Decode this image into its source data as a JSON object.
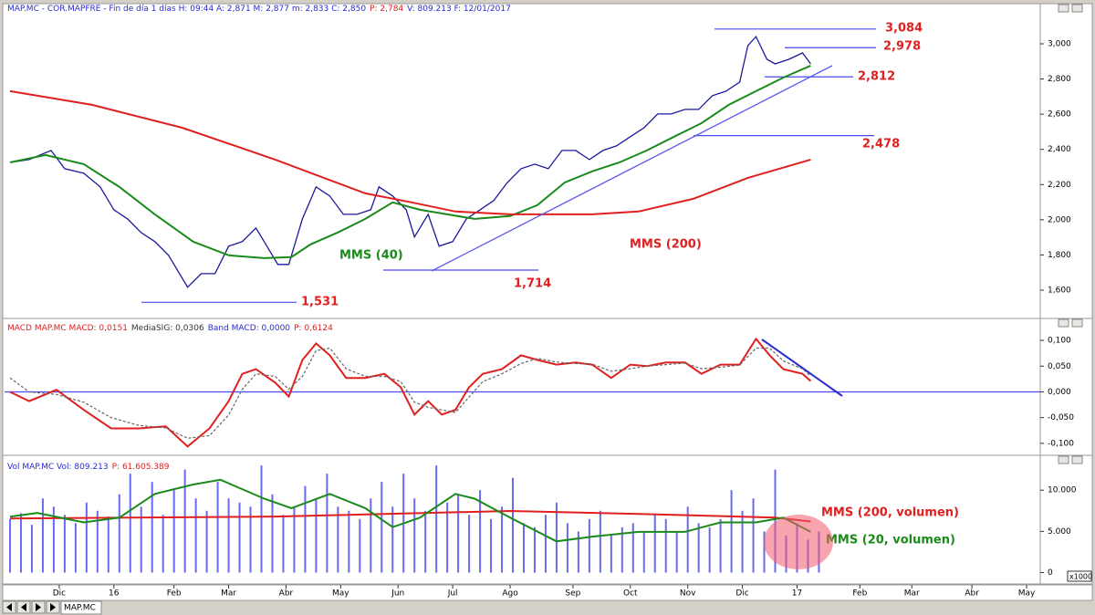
{
  "chart_data": [
    {
      "type": "line",
      "title_parts": [
        "MAP.MC - COR.MAPFRE - Fin de día 1 días H: 09:44 A: 2,871 M: 2,877 m: 2,833 C: 2,850",
        "P: 2,784",
        "V: 809.213 F: 12/01/2017"
      ],
      "title_colors": [
        "#2a2ad0",
        "#e02020",
        "#2a2ad0"
      ],
      "xlim": [
        -2,
        377
      ],
      "ylim": [
        1434,
        3197
      ],
      "yticks": [
        {
          "value": 1600,
          "label": "1,600"
        },
        {
          "value": 1800,
          "label": "1,800"
        },
        {
          "value": 2000,
          "label": "2,000"
        },
        {
          "value": 2200,
          "label": "2,200"
        },
        {
          "value": 2400,
          "label": "2,400"
        },
        {
          "value": 2600,
          "label": "2,600"
        },
        {
          "value": 2800,
          "label": "2,800"
        },
        {
          "value": 3000,
          "label": "3,000"
        }
      ],
      "series": [
        {
          "color": "#1a1a9a",
          "x": [
            0,
            7,
            15,
            20,
            27,
            33,
            38,
            43,
            48,
            53,
            58,
            62,
            65,
            70,
            75,
            80,
            85,
            90,
            93,
            98,
            102,
            107,
            112,
            117,
            122,
            127,
            132,
            135,
            140,
            145,
            148,
            153,
            157,
            162,
            167,
            172,
            177,
            182,
            187,
            192,
            197,
            202,
            207,
            212,
            217,
            222,
            227,
            232,
            237,
            242,
            247,
            252,
            257,
            262,
            267,
            270,
            273,
            277,
            280,
            285,
            290,
            293
          ],
          "values": [
            2326,
            2342,
            2394,
            2290,
            2264,
            2187,
            2057,
            2005,
            1927,
            1876,
            1798,
            1694,
            1617,
            1694,
            1694,
            1850,
            1876,
            1953,
            1876,
            1746,
            1746,
            2005,
            2187,
            2135,
            2031,
            2031,
            2057,
            2187,
            2135,
            2057,
            1902,
            2031,
            1850,
            1876,
            2005,
            2057,
            2109,
            2212,
            2290,
            2316,
            2290,
            2394,
            2394,
            2342,
            2394,
            2420,
            2472,
            2523,
            2601,
            2601,
            2627,
            2627,
            2705,
            2731,
            2782,
            2990,
            3041,
            2912,
            2886,
            2912,
            2948,
            2886
          ]
        },
        {
          "name": "MMS (40)",
          "color": "#1a8a1a",
          "x": [
            0,
            13,
            27,
            40,
            53,
            67,
            80,
            93,
            103,
            110,
            120,
            130,
            140,
            150,
            160,
            170,
            183,
            193,
            203,
            213,
            223,
            233,
            243,
            253,
            263,
            273,
            283,
            293
          ],
          "values": [
            2326,
            2368,
            2316,
            2187,
            2031,
            1876,
            1798,
            1782,
            1788,
            1860,
            1928,
            2005,
            2099,
            2057,
            2031,
            2005,
            2021,
            2083,
            2212,
            2275,
            2326,
            2394,
            2472,
            2549,
            2653,
            2731,
            2808,
            2876
          ]
        },
        {
          "name": "MMS (200)",
          "color": "#e02020",
          "x": [
            0,
            30,
            63,
            97,
            130,
            147,
            163,
            183,
            213,
            230,
            250,
            270,
            293
          ],
          "values": [
            2731,
            2653,
            2523,
            2342,
            2150,
            2099,
            2047,
            2031,
            2031,
            2047,
            2119,
            2238,
            2342
          ]
        }
      ],
      "levels": [
        {
          "value": 3084,
          "label": "3,084"
        },
        {
          "value": 2978,
          "label": "2,978"
        },
        {
          "value": 2812,
          "label": "2,812"
        },
        {
          "value": 2478,
          "label": "2,478"
        },
        {
          "value": 1714,
          "label": "1,714"
        },
        {
          "value": 1531,
          "label": "1,531"
        }
      ],
      "level_color": "#e02020"
    },
    {
      "type": "line",
      "title_parts": [
        "MACD MAP.MC MACD: 0,0151",
        "MediaSIG: 0,0306",
        "Band MACD: 0,0000",
        "P: 0,6124"
      ],
      "title_colors": [
        "#e02020",
        "#333333",
        "#2a2ad0",
        "#e02020"
      ],
      "xlim": [
        -2,
        377
      ],
      "ylim": [
        -0.125,
        0.132
      ],
      "yticks": [
        {
          "value": -0.1,
          "label": "-0,100"
        },
        {
          "value": -0.05,
          "label": "-0,050"
        },
        {
          "value": 0,
          "label": "0,000"
        },
        {
          "value": 0.05,
          "label": "0,050"
        },
        {
          "value": 0.1,
          "label": "0,100"
        }
      ],
      "band_value": 0,
      "series": [
        {
          "color": "#e02020",
          "x": [
            0,
            7,
            17,
            27,
            37,
            47,
            57,
            65,
            73,
            80,
            85,
            90,
            97,
            102,
            107,
            112,
            117,
            123,
            130,
            137,
            143,
            148,
            153,
            158,
            163,
            168,
            173,
            180,
            187,
            193,
            200,
            207,
            213,
            220,
            227,
            233,
            240,
            247,
            253,
            260,
            267,
            273,
            278,
            283,
            290,
            293
          ],
          "values": [
            0,
            -0.018,
            0.004,
            -0.035,
            -0.071,
            -0.071,
            -0.067,
            -0.106,
            -0.071,
            -0.018,
            0.035,
            0.044,
            0.018,
            -0.009,
            0.062,
            0.094,
            0.071,
            0.027,
            0.027,
            0.035,
            0.009,
            -0.044,
            -0.018,
            -0.044,
            -0.035,
            0.009,
            0.035,
            0.044,
            0.071,
            0.062,
            0.053,
            0.057,
            0.053,
            0.027,
            0.053,
            0.05,
            0.057,
            0.057,
            0.035,
            0.053,
            0.053,
            0.103,
            0.071,
            0.044,
            0.035,
            0.021
          ]
        },
        {
          "color": "#666666",
          "dash": true,
          "x": [
            0,
            7,
            17,
            27,
            37,
            47,
            57,
            65,
            73,
            80,
            85,
            90,
            97,
            102,
            107,
            112,
            117,
            123,
            130,
            137,
            143,
            148,
            153,
            158,
            163,
            168,
            173,
            180,
            187,
            193,
            200,
            207,
            213,
            220,
            227,
            233,
            240,
            247,
            253,
            260,
            267,
            273,
            278,
            283,
            290,
            293
          ],
          "values": [
            0.027,
            0,
            -0.005,
            -0.02,
            -0.05,
            -0.065,
            -0.07,
            -0.09,
            -0.085,
            -0.045,
            0.005,
            0.035,
            0.03,
            0.005,
            0.03,
            0.08,
            0.085,
            0.045,
            0.03,
            0.03,
            0.02,
            -0.02,
            -0.03,
            -0.035,
            -0.04,
            -0.01,
            0.02,
            0.035,
            0.055,
            0.065,
            0.058,
            0.055,
            0.054,
            0.04,
            0.045,
            0.05,
            0.053,
            0.056,
            0.045,
            0.048,
            0.052,
            0.085,
            0.085,
            0.06,
            0.045,
            0.03
          ]
        }
      ]
    },
    {
      "type": "bar",
      "title_parts": [
        "Vol MAP.MC Vol: 809.213",
        "P: 61.605.389"
      ],
      "title_colors": [
        "#2a2ad0",
        "#e02020"
      ],
      "units_label": "x1000",
      "xlim": [
        -2,
        377
      ],
      "ylim": [
        -1379,
        13563
      ],
      "yticks": [
        0,
        {
          "value": 5000,
          "label": "5.000"
        },
        {
          "value": 10000,
          "label": "10.000"
        }
      ],
      "xticks": [
        {
          "value": 18,
          "label": "Dic"
        },
        {
          "value": 38,
          "label": "16"
        },
        {
          "value": 60,
          "label": "Feb"
        },
        {
          "value": 80,
          "label": "Mar"
        },
        {
          "value": 101,
          "label": "Abr"
        },
        {
          "value": 121,
          "label": "May"
        },
        {
          "value": 142,
          "label": "Jun"
        },
        {
          "value": 162,
          "label": "Jul"
        },
        {
          "value": 183,
          "label": "Ago"
        },
        {
          "value": 206,
          "label": "Sep"
        },
        {
          "value": 227,
          "label": "Oct"
        },
        {
          "value": 248,
          "label": "Nov"
        },
        {
          "value": 268,
          "label": "Dic"
        },
        {
          "value": 288,
          "label": "17"
        },
        {
          "value": 311,
          "label": "Feb"
        },
        {
          "value": 330,
          "label": "Mar"
        },
        {
          "value": 352,
          "label": "Abr"
        },
        {
          "value": 372,
          "label": "May"
        }
      ],
      "series": [
        {
          "type": "bar",
          "color": "#6a6af0",
          "x": [
            0,
            4,
            8,
            12,
            16,
            20,
            24,
            28,
            32,
            36,
            40,
            44,
            48,
            52,
            56,
            60,
            64,
            68,
            72,
            76,
            80,
            84,
            88,
            92,
            96,
            100,
            104,
            108,
            112,
            116,
            120,
            124,
            128,
            132,
            136,
            140,
            144,
            148,
            152,
            156,
            160,
            164,
            168,
            172,
            176,
            180,
            184,
            188,
            192,
            196,
            200,
            204,
            208,
            212,
            216,
            220,
            224,
            228,
            232,
            236,
            240,
            244,
            248,
            252,
            256,
            260,
            264,
            268,
            272,
            276,
            280,
            284,
            288,
            292,
            296
          ],
          "values": [
            6500,
            7200,
            5800,
            9000,
            8000,
            7000,
            6000,
            8500,
            7500,
            6800,
            9500,
            12000,
            8000,
            11000,
            7000,
            10000,
            12500,
            9000,
            7500,
            11000,
            9000,
            8500,
            8000,
            13000,
            9500,
            7000,
            8000,
            10500,
            9000,
            12000,
            8000,
            7500,
            6500,
            9000,
            11000,
            8000,
            12000,
            9000,
            7500,
            13000,
            8500,
            9500,
            7000,
            10000,
            6500,
            8000,
            11500,
            6000,
            5500,
            7000,
            8500,
            6000,
            5000,
            6500,
            7500,
            4500,
            5500,
            6000,
            5000,
            7000,
            6500,
            5000,
            8000,
            6000,
            5500,
            6500,
            10000,
            7500,
            9000,
            5000,
            12500,
            4500,
            6000,
            4000,
            5000
          ]
        },
        {
          "type": "line",
          "name": "MMS (200, volumen)",
          "color": "#e02020",
          "x": [
            0,
            97,
            183,
            230,
            280,
            293
          ],
          "values": [
            6552,
            6800,
            7471,
            7126,
            6667,
            6207
          ]
        },
        {
          "type": "line",
          "name": "MMS (20, volumen)",
          "color": "#1a8a1a",
          "x": [
            0,
            10,
            27,
            40,
            53,
            67,
            77,
            93,
            103,
            117,
            130,
            140,
            150,
            163,
            170,
            183,
            200,
            213,
            230,
            247,
            260,
            273,
            283,
            293
          ],
          "values": [
            6782,
            7241,
            6092,
            6667,
            9540,
            10690,
            11264,
            8966,
            7816,
            9540,
            7816,
            5517,
            6667,
            9540,
            8966,
            6667,
            3793,
            4368,
            4943,
            4943,
            6092,
            6092,
            6667,
            4943
          ]
        }
      ]
    }
  ],
  "toolbar": {
    "tab": "MAP.MC"
  }
}
